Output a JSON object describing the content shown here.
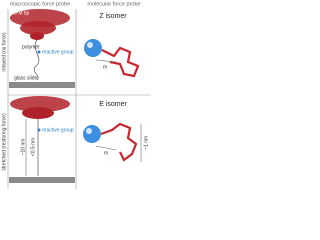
{
  "header": {
    "left": "macroscopic force probe",
    "right": "molecular force probe"
  },
  "rows": {
    "top": "relaxed (no force)",
    "bottom": "stretched (restoring force)"
  },
  "top_left": {
    "tip": "AFM tip",
    "polymer": "polymer",
    "reactive": "reactive group",
    "slide": "glass slide"
  },
  "bottom_left": {
    "length": "~10 nm",
    "small": "<0.5 nm",
    "reactive": "reactive group"
  },
  "top_right": {
    "title": "Z isomer",
    "m": "m"
  },
  "bottom_right": {
    "title": "E isomer",
    "m": "m",
    "length": "~1 nm"
  }
}
